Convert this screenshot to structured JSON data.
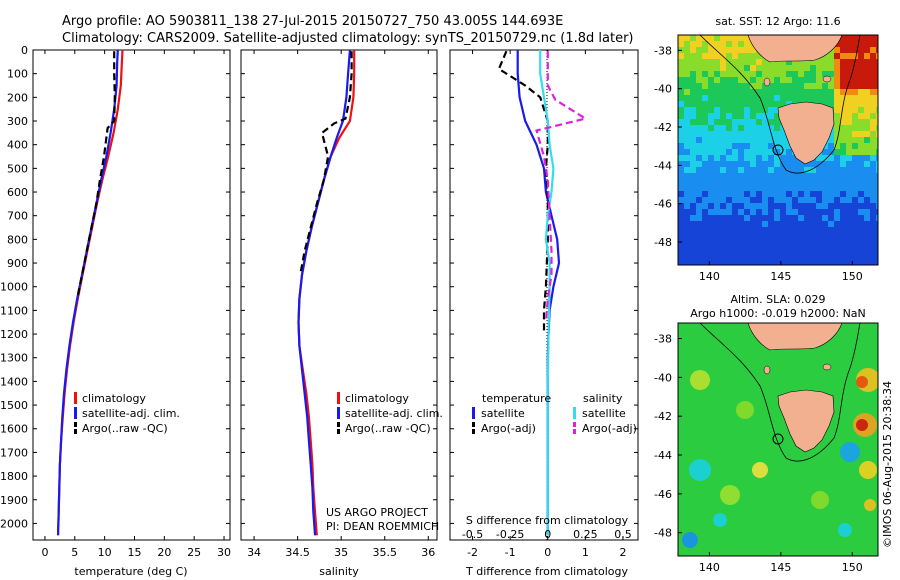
{
  "header": {
    "line1": "Argo profile: AO 5903811_138 27-Jul-2015 20150727_750 43.005S 144.693E",
    "line2": "Climatology: CARS2009. Satellite-adjusted climatology: synTS_20150729.nc (1.8d later)"
  },
  "colors": {
    "climatology": "#ee1111",
    "satellite": "#1a1aee",
    "argo": "#000000",
    "s_satellite": "#33ddee",
    "s_argo": "#dd22dd",
    "land": "#f2b090"
  },
  "chart_data": [
    {
      "type": "line",
      "id": "temperature",
      "xlabel": "temperature (deg C)",
      "ylabel": "",
      "xlim": [
        -2,
        31
      ],
      "ylim": [
        2070,
        0
      ],
      "xticks": [
        0,
        5,
        10,
        15,
        20,
        25,
        30
      ],
      "yticks": [
        0,
        100,
        200,
        300,
        400,
        500,
        600,
        700,
        800,
        900,
        1000,
        1100,
        1200,
        1300,
        1400,
        1500,
        1600,
        1700,
        1800,
        1900,
        2000
      ],
      "legend": [
        "climatology",
        "satellite-adj. clim.",
        "Argo(..raw -QC)"
      ],
      "legend_position": "lower-middle",
      "series": [
        {
          "name": "climatology",
          "style": "solid",
          "color": "#ee1111",
          "x": [
            13.0,
            12.9,
            12.7,
            12.2,
            11.5,
            10.6,
            9.6,
            8.7,
            7.9,
            7.1,
            6.3,
            5.5,
            4.8,
            4.2,
            3.7,
            3.3,
            3.0,
            2.7,
            2.5,
            2.4,
            2.3,
            2.25,
            2.2,
            2.2
          ],
          "y": [
            0,
            50,
            150,
            250,
            350,
            450,
            550,
            650,
            750,
            850,
            950,
            1050,
            1150,
            1250,
            1350,
            1450,
            1550,
            1650,
            1750,
            1850,
            1950,
            2000,
            2030,
            2050
          ]
        },
        {
          "name": "satellite-adj. clim.",
          "style": "solid",
          "color": "#1a1aee",
          "x": [
            12.2,
            12.1,
            12.0,
            11.6,
            11.0,
            10.3,
            9.4,
            8.6,
            7.8,
            7.0,
            6.2,
            5.4,
            4.7,
            4.1,
            3.6,
            3.2,
            2.9,
            2.7,
            2.5,
            2.4,
            2.3,
            2.25,
            2.2,
            2.2
          ],
          "y": [
            0,
            50,
            150,
            250,
            350,
            450,
            550,
            650,
            750,
            850,
            950,
            1050,
            1150,
            1250,
            1350,
            1450,
            1550,
            1650,
            1750,
            1850,
            1950,
            2000,
            2030,
            2050
          ]
        },
        {
          "name": "Argo(..raw -QC)",
          "style": "dashed",
          "color": "#000000",
          "x": [
            11.6,
            11.6,
            11.7,
            11.6,
            10.5,
            9.9,
            9.2,
            8.6,
            7.8,
            7.0,
            6.2,
            5.4
          ],
          "y": [
            5,
            100,
            200,
            300,
            330,
            450,
            550,
            650,
            750,
            850,
            950,
            1050
          ]
        }
      ]
    },
    {
      "type": "line",
      "id": "salinity",
      "xlabel": "salinity",
      "ylabel": "",
      "xlim": [
        33.85,
        36.1
      ],
      "ylim": [
        2070,
        0
      ],
      "xticks": [
        34,
        34.5,
        35,
        35.5,
        36
      ],
      "legend": [
        "climatology",
        "satellite-adj. clim.",
        "Argo(..raw -QC)"
      ],
      "legend_position": "lower-middle",
      "series": [
        {
          "name": "climatology",
          "style": "solid",
          "color": "#ee1111",
          "x": [
            35.15,
            35.15,
            35.14,
            35.1,
            34.98,
            34.88,
            34.8,
            34.73,
            34.66,
            34.6,
            34.55,
            34.52,
            34.51,
            34.52,
            34.56,
            34.6,
            34.63,
            34.65,
            34.67,
            34.68,
            34.7,
            34.71,
            34.72
          ],
          "y": [
            0,
            100,
            200,
            300,
            370,
            450,
            550,
            650,
            750,
            850,
            950,
            1050,
            1150,
            1250,
            1350,
            1450,
            1550,
            1650,
            1750,
            1850,
            1950,
            2000,
            2050
          ]
        },
        {
          "name": "satellite-adj. clim.",
          "style": "solid",
          "color": "#1a1aee",
          "x": [
            35.1,
            35.08,
            35.06,
            35.02,
            34.95,
            34.88,
            34.8,
            34.73,
            34.66,
            34.6,
            34.55,
            34.52,
            34.51,
            34.52,
            34.55,
            34.58,
            34.61,
            34.63,
            34.65,
            34.67,
            34.68,
            34.69,
            34.7
          ],
          "y": [
            0,
            100,
            200,
            300,
            370,
            450,
            550,
            650,
            750,
            850,
            950,
            1050,
            1150,
            1250,
            1350,
            1450,
            1550,
            1650,
            1750,
            1850,
            1950,
            2000,
            2050
          ]
        },
        {
          "name": "Argo(..raw -QC)",
          "style": "dashed",
          "color": "#000000",
          "x": [
            35.12,
            35.12,
            35.1,
            35.05,
            34.92,
            34.78,
            34.85,
            34.8,
            34.72,
            34.65,
            34.58,
            34.53
          ],
          "y": [
            5,
            100,
            200,
            290,
            310,
            350,
            450,
            550,
            650,
            750,
            850,
            950
          ]
        }
      ]
    },
    {
      "type": "line",
      "id": "difference",
      "xlabel": "T difference from climatology",
      "xlabel_top": "S difference from climatology",
      "ylabel": "",
      "xlim": [
        -2.6,
        2.4
      ],
      "ylim": [
        2070,
        0
      ],
      "xticks": [
        -2,
        -1,
        0,
        1,
        2
      ],
      "xticks_top": [
        "-0.5",
        "-0.25",
        "0",
        "0.25",
        "0.5"
      ],
      "legend_t_title": "temperature",
      "legend_s_title": "salinity",
      "legend_t": [
        "satellite",
        "Argo(-adj)"
      ],
      "legend_s": [
        "satellite",
        "Argo(-adj)"
      ],
      "series": [
        {
          "name": "satellite",
          "group": "temperature",
          "style": "solid",
          "color": "#1a1aee",
          "x": [
            -0.8,
            -0.8,
            -0.75,
            -0.6,
            -0.3,
            -0.1,
            -0.05,
            0.1,
            0.25,
            0.3,
            0.15,
            0.05,
            0.02,
            0.0,
            0.0,
            0.0,
            0.0,
            0.0,
            0.0,
            0.0
          ],
          "y": [
            0,
            100,
            200,
            300,
            400,
            500,
            600,
            700,
            800,
            900,
            1000,
            1100,
            1200,
            1300,
            1400,
            1500,
            1600,
            1800,
            2000,
            2050
          ]
        },
        {
          "name": "Argo(-adj)",
          "group": "temperature",
          "style": "dashed",
          "color": "#000000",
          "x": [
            -1.1,
            -1.3,
            -0.6,
            -0.2,
            0.0,
            0.0,
            -0.05,
            0.0,
            0.0,
            -0.05,
            -0.1,
            -0.1
          ],
          "y": [
            5,
            80,
            150,
            200,
            300,
            400,
            500,
            600,
            800,
            1000,
            1100,
            1200
          ]
        },
        {
          "name": "satellite",
          "group": "salinity",
          "style": "solid",
          "color": "#33ddee",
          "x": [
            -0.2,
            -0.2,
            -0.1,
            0.0,
            0.05,
            0.15,
            0.1,
            0.0,
            -0.05,
            0.05,
            0.05,
            0.02,
            0.0,
            0.0,
            0.0,
            0.0,
            0.0,
            0.0
          ],
          "y": [
            0,
            100,
            200,
            300,
            400,
            500,
            600,
            700,
            800,
            900,
            1000,
            1200,
            1400,
            1500,
            1600,
            1800,
            2000,
            2050
          ]
        },
        {
          "name": "Argo(-adj)",
          "group": "salinity",
          "style": "dashed",
          "color": "#dd22dd",
          "x": [
            0.0,
            0.0,
            0.2,
            1.0,
            -0.3,
            -0.1,
            0.0,
            0.05,
            0.1,
            0.1,
            0.0,
            -0.05
          ],
          "y": [
            5,
            150,
            210,
            290,
            340,
            450,
            550,
            700,
            850,
            950,
            1050,
            1150
          ]
        }
      ]
    },
    {
      "type": "heatmap",
      "id": "sst_map",
      "title": "sat. SST: 12 Argo: 11.6",
      "xticks": [
        140,
        145,
        150
      ],
      "yticks": [
        -38,
        -40,
        -42,
        -44,
        -46,
        -48
      ],
      "xlim": [
        137.8,
        151.8
      ],
      "ylim": [
        -49.2,
        -37.2
      ],
      "float_position": [
        144.693,
        -43.005
      ]
    },
    {
      "type": "heatmap",
      "id": "sla_map",
      "title_line1": "Altim. SLA: 0.029",
      "title_line2": "Argo h1000: -0.019 h2000: NaN",
      "xticks": [
        140,
        145,
        150
      ],
      "yticks": [
        -38,
        -40,
        -42,
        -44,
        -46,
        -48
      ],
      "xlim": [
        137.8,
        151.8
      ],
      "ylim": [
        -49.2,
        -37.2
      ],
      "float_position": [
        144.693,
        -43.005
      ]
    }
  ],
  "footer": {
    "project": "US ARGO PROJECT",
    "pi": "PI: DEAN ROEMMICH",
    "watermark": "©IMOS 06-Aug-2015 20:38:34"
  }
}
